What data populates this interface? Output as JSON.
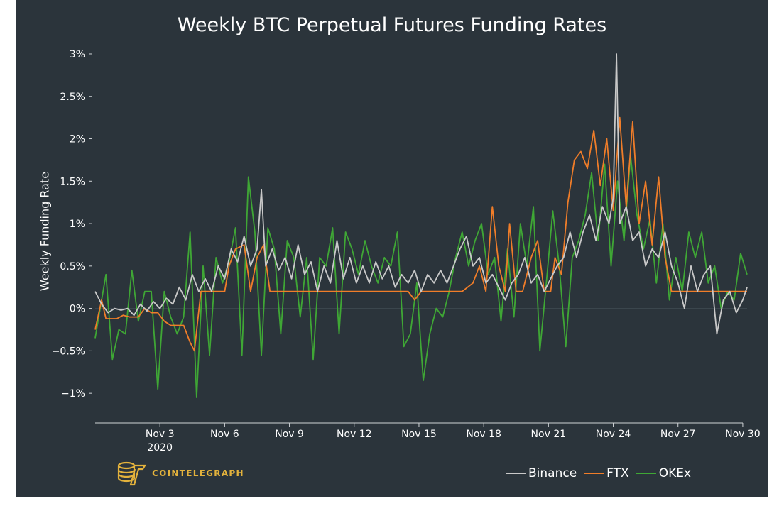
{
  "chart_data": {
    "type": "line",
    "title": "Weekly BTC Perpetual Futures Funding Rates",
    "ylabel": "Weekly Funding Rate",
    "xlabel": "",
    "ylim": [
      -1.35,
      3.05
    ],
    "xlim": [
      0,
      30.2
    ],
    "y_ticks": [
      -1,
      -0.5,
      0,
      0.5,
      1,
      1.5,
      2,
      2.5,
      3
    ],
    "y_tick_labels": [
      "−1%",
      "−0.5%",
      "0%",
      "0.5%",
      "1%",
      "1.5%",
      "2%",
      "2.5%",
      "3%"
    ],
    "x_ticks": [
      3,
      6,
      9,
      12,
      15,
      18,
      21,
      24,
      27,
      30
    ],
    "x_tick_labels": [
      "Nov 3",
      "Nov 6",
      "Nov 9",
      "Nov 12",
      "Nov 15",
      "Nov 18",
      "Nov 21",
      "Nov 24",
      "Nov 27",
      "Nov 30"
    ],
    "x_sub_label": "2020",
    "zero_line": true,
    "legend_position": "bottom-right",
    "series": [
      {
        "name": "Binance",
        "color": "#c9c9c9",
        "points": [
          [
            0,
            0.2
          ],
          [
            0.3,
            0.05
          ],
          [
            0.6,
            -0.05
          ],
          [
            0.9,
            0.0
          ],
          [
            1.2,
            -0.02
          ],
          [
            1.5,
            0.0
          ],
          [
            1.8,
            -0.08
          ],
          [
            2.1,
            0.05
          ],
          [
            2.4,
            -0.03
          ],
          [
            2.7,
            0.08
          ],
          [
            3.0,
            0.0
          ],
          [
            3.3,
            0.12
          ],
          [
            3.6,
            0.05
          ],
          [
            3.9,
            0.25
          ],
          [
            4.2,
            0.1
          ],
          [
            4.5,
            0.4
          ],
          [
            4.8,
            0.2
          ],
          [
            5.1,
            0.35
          ],
          [
            5.4,
            0.2
          ],
          [
            5.7,
            0.5
          ],
          [
            6.0,
            0.35
          ],
          [
            6.3,
            0.7
          ],
          [
            6.6,
            0.55
          ],
          [
            6.9,
            0.85
          ],
          [
            7.2,
            0.5
          ],
          [
            7.5,
            0.7
          ],
          [
            7.7,
            1.4
          ],
          [
            7.9,
            0.5
          ],
          [
            8.2,
            0.7
          ],
          [
            8.5,
            0.45
          ],
          [
            8.8,
            0.6
          ],
          [
            9.1,
            0.35
          ],
          [
            9.4,
            0.75
          ],
          [
            9.7,
            0.4
          ],
          [
            10.0,
            0.55
          ],
          [
            10.3,
            0.2
          ],
          [
            10.6,
            0.5
          ],
          [
            10.9,
            0.3
          ],
          [
            11.2,
            0.8
          ],
          [
            11.5,
            0.35
          ],
          [
            11.8,
            0.6
          ],
          [
            12.1,
            0.3
          ],
          [
            12.4,
            0.5
          ],
          [
            12.7,
            0.3
          ],
          [
            13.0,
            0.55
          ],
          [
            13.3,
            0.35
          ],
          [
            13.6,
            0.5
          ],
          [
            13.9,
            0.25
          ],
          [
            14.2,
            0.4
          ],
          [
            14.5,
            0.3
          ],
          [
            14.8,
            0.45
          ],
          [
            15.1,
            0.2
          ],
          [
            15.4,
            0.4
          ],
          [
            15.7,
            0.3
          ],
          [
            16.0,
            0.45
          ],
          [
            16.3,
            0.3
          ],
          [
            16.6,
            0.5
          ],
          [
            16.9,
            0.7
          ],
          [
            17.2,
            0.85
          ],
          [
            17.5,
            0.5
          ],
          [
            17.8,
            0.6
          ],
          [
            18.1,
            0.3
          ],
          [
            18.4,
            0.4
          ],
          [
            18.7,
            0.25
          ],
          [
            19.0,
            0.1
          ],
          [
            19.3,
            0.3
          ],
          [
            19.6,
            0.4
          ],
          [
            19.9,
            0.6
          ],
          [
            20.2,
            0.3
          ],
          [
            20.5,
            0.4
          ],
          [
            20.8,
            0.2
          ],
          [
            21.1,
            0.35
          ],
          [
            21.4,
            0.5
          ],
          [
            21.7,
            0.6
          ],
          [
            22.0,
            0.9
          ],
          [
            22.3,
            0.6
          ],
          [
            22.6,
            0.9
          ],
          [
            22.9,
            1.1
          ],
          [
            23.2,
            0.8
          ],
          [
            23.5,
            1.2
          ],
          [
            23.8,
            1.0
          ],
          [
            24.0,
            1.3
          ],
          [
            24.15,
            3.0
          ],
          [
            24.3,
            1.0
          ],
          [
            24.6,
            1.2
          ],
          [
            24.9,
            0.8
          ],
          [
            25.2,
            0.9
          ],
          [
            25.5,
            0.5
          ],
          [
            25.8,
            0.7
          ],
          [
            26.1,
            0.6
          ],
          [
            26.4,
            0.9
          ],
          [
            26.7,
            0.5
          ],
          [
            27.0,
            0.3
          ],
          [
            27.3,
            0.0
          ],
          [
            27.6,
            0.5
          ],
          [
            27.9,
            0.2
          ],
          [
            28.2,
            0.4
          ],
          [
            28.5,
            0.5
          ],
          [
            28.8,
            -0.3
          ],
          [
            29.1,
            0.1
          ],
          [
            29.4,
            0.2
          ],
          [
            29.7,
            -0.05
          ],
          [
            30.0,
            0.1
          ],
          [
            30.2,
            0.25
          ]
        ]
      },
      {
        "name": "FTX",
        "color": "#f07d29",
        "points": [
          [
            0,
            -0.25
          ],
          [
            0.3,
            0.1
          ],
          [
            0.5,
            -0.12
          ],
          [
            1.0,
            -0.12
          ],
          [
            1.3,
            -0.08
          ],
          [
            1.6,
            -0.1
          ],
          [
            2.0,
            -0.1
          ],
          [
            2.3,
            0.0
          ],
          [
            2.6,
            -0.05
          ],
          [
            2.9,
            -0.05
          ],
          [
            3.2,
            -0.15
          ],
          [
            3.5,
            -0.2
          ],
          [
            3.8,
            -0.2
          ],
          [
            4.1,
            -0.2
          ],
          [
            4.4,
            -0.4
          ],
          [
            4.6,
            -0.5
          ],
          [
            4.9,
            0.2
          ],
          [
            5.5,
            0.2
          ],
          [
            6.0,
            0.2
          ],
          [
            6.2,
            0.5
          ],
          [
            6.5,
            0.7
          ],
          [
            6.9,
            0.75
          ],
          [
            7.2,
            0.2
          ],
          [
            7.5,
            0.6
          ],
          [
            7.8,
            0.75
          ],
          [
            8.1,
            0.2
          ],
          [
            9.0,
            0.2
          ],
          [
            10.0,
            0.2
          ],
          [
            11.0,
            0.2
          ],
          [
            12.0,
            0.2
          ],
          [
            13.0,
            0.2
          ],
          [
            14.0,
            0.2
          ],
          [
            14.5,
            0.2
          ],
          [
            14.8,
            0.1
          ],
          [
            15.1,
            0.2
          ],
          [
            16.0,
            0.2
          ],
          [
            17.0,
            0.2
          ],
          [
            17.5,
            0.3
          ],
          [
            17.8,
            0.5
          ],
          [
            18.1,
            0.2
          ],
          [
            18.4,
            1.2
          ],
          [
            18.7,
            0.5
          ],
          [
            19.0,
            0.2
          ],
          [
            19.2,
            1.0
          ],
          [
            19.5,
            0.2
          ],
          [
            19.8,
            0.2
          ],
          [
            20.2,
            0.6
          ],
          [
            20.5,
            0.8
          ],
          [
            20.8,
            0.2
          ],
          [
            21.1,
            0.2
          ],
          [
            21.3,
            0.6
          ],
          [
            21.6,
            0.4
          ],
          [
            21.9,
            1.25
          ],
          [
            22.2,
            1.75
          ],
          [
            22.5,
            1.85
          ],
          [
            22.8,
            1.65
          ],
          [
            23.1,
            2.1
          ],
          [
            23.4,
            1.45
          ],
          [
            23.7,
            2.0
          ],
          [
            24.0,
            1.15
          ],
          [
            24.3,
            2.25
          ],
          [
            24.6,
            1.2
          ],
          [
            24.9,
            2.2
          ],
          [
            25.2,
            1.0
          ],
          [
            25.5,
            1.5
          ],
          [
            25.8,
            0.75
          ],
          [
            26.1,
            1.55
          ],
          [
            26.4,
            0.6
          ],
          [
            26.7,
            0.2
          ],
          [
            27.0,
            0.2
          ],
          [
            27.5,
            0.2
          ],
          [
            28.0,
            0.2
          ],
          [
            28.5,
            0.2
          ],
          [
            29.0,
            0.2
          ],
          [
            29.5,
            0.2
          ],
          [
            30.0,
            0.2
          ],
          [
            30.2,
            0.2
          ]
        ]
      },
      {
        "name": "OKEx",
        "color": "#3fa735",
        "points": [
          [
            0,
            -0.35
          ],
          [
            0.3,
            0.1
          ],
          [
            0.5,
            0.4
          ],
          [
            0.8,
            -0.6
          ],
          [
            1.1,
            -0.25
          ],
          [
            1.4,
            -0.3
          ],
          [
            1.7,
            0.45
          ],
          [
            2.0,
            -0.15
          ],
          [
            2.3,
            0.2
          ],
          [
            2.6,
            0.2
          ],
          [
            2.9,
            -0.95
          ],
          [
            3.2,
            0.2
          ],
          [
            3.5,
            -0.1
          ],
          [
            3.8,
            -0.3
          ],
          [
            4.1,
            -0.1
          ],
          [
            4.4,
            0.9
          ],
          [
            4.7,
            -1.05
          ],
          [
            5.0,
            0.5
          ],
          [
            5.3,
            -0.55
          ],
          [
            5.6,
            0.6
          ],
          [
            5.9,
            0.3
          ],
          [
            6.2,
            0.55
          ],
          [
            6.5,
            0.95
          ],
          [
            6.8,
            -0.55
          ],
          [
            7.1,
            1.55
          ],
          [
            7.4,
            0.9
          ],
          [
            7.7,
            -0.55
          ],
          [
            8.0,
            0.95
          ],
          [
            8.3,
            0.7
          ],
          [
            8.6,
            -0.3
          ],
          [
            8.9,
            0.8
          ],
          [
            9.2,
            0.6
          ],
          [
            9.5,
            -0.1
          ],
          [
            9.8,
            0.6
          ],
          [
            10.1,
            -0.6
          ],
          [
            10.4,
            0.6
          ],
          [
            10.7,
            0.5
          ],
          [
            11.0,
            0.95
          ],
          [
            11.3,
            -0.3
          ],
          [
            11.6,
            0.9
          ],
          [
            11.9,
            0.7
          ],
          [
            12.2,
            0.4
          ],
          [
            12.5,
            0.8
          ],
          [
            12.8,
            0.5
          ],
          [
            13.1,
            0.3
          ],
          [
            13.4,
            0.6
          ],
          [
            13.7,
            0.5
          ],
          [
            14.0,
            0.9
          ],
          [
            14.3,
            -0.45
          ],
          [
            14.6,
            -0.3
          ],
          [
            14.9,
            0.3
          ],
          [
            15.2,
            -0.85
          ],
          [
            15.5,
            -0.3
          ],
          [
            15.8,
            0.0
          ],
          [
            16.1,
            -0.1
          ],
          [
            16.4,
            0.2
          ],
          [
            16.7,
            0.6
          ],
          [
            17.0,
            0.9
          ],
          [
            17.3,
            0.5
          ],
          [
            17.6,
            0.8
          ],
          [
            17.9,
            1.0
          ],
          [
            18.2,
            0.4
          ],
          [
            18.5,
            0.6
          ],
          [
            18.8,
            -0.15
          ],
          [
            19.1,
            0.7
          ],
          [
            19.4,
            -0.1
          ],
          [
            19.7,
            1.0
          ],
          [
            20.0,
            0.5
          ],
          [
            20.3,
            1.2
          ],
          [
            20.6,
            -0.5
          ],
          [
            20.9,
            0.3
          ],
          [
            21.2,
            1.15
          ],
          [
            21.5,
            0.5
          ],
          [
            21.8,
            -0.45
          ],
          [
            22.1,
            0.6
          ],
          [
            22.4,
            0.8
          ],
          [
            22.7,
            1.1
          ],
          [
            23.0,
            1.6
          ],
          [
            23.3,
            0.8
          ],
          [
            23.6,
            1.7
          ],
          [
            23.9,
            0.5
          ],
          [
            24.2,
            1.5
          ],
          [
            24.5,
            0.8
          ],
          [
            24.8,
            1.8
          ],
          [
            25.1,
            1.1
          ],
          [
            25.4,
            0.7
          ],
          [
            25.7,
            1.05
          ],
          [
            26.0,
            0.3
          ],
          [
            26.3,
            1.0
          ],
          [
            26.6,
            0.1
          ],
          [
            26.9,
            0.6
          ],
          [
            27.2,
            0.2
          ],
          [
            27.5,
            0.9
          ],
          [
            27.8,
            0.6
          ],
          [
            28.1,
            0.9
          ],
          [
            28.4,
            0.3
          ],
          [
            28.7,
            0.5
          ],
          [
            29.0,
            0.0
          ],
          [
            29.3,
            0.2
          ],
          [
            29.6,
            0.1
          ],
          [
            29.9,
            0.65
          ],
          [
            30.2,
            0.4
          ]
        ]
      }
    ]
  },
  "branding": {
    "logo_text": "COINTELEGRAPH",
    "logo_color": "#e3b23c"
  }
}
